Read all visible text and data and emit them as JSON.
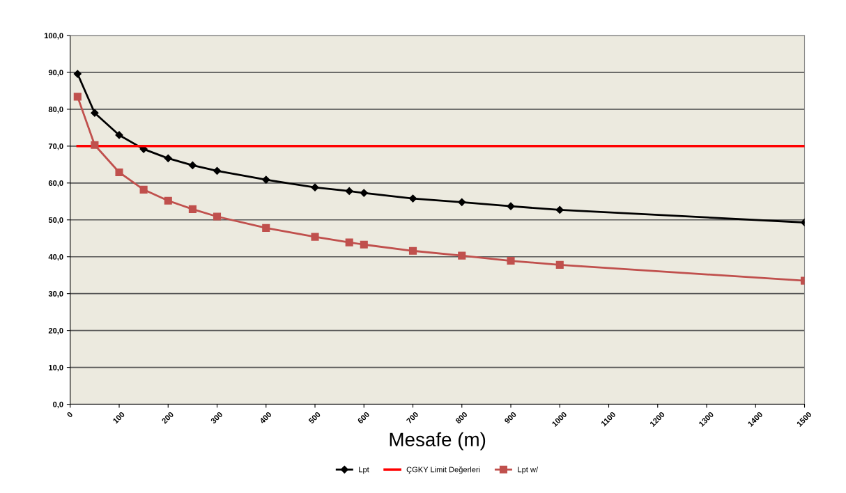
{
  "chart_data": {
    "type": "line",
    "xlabel": "Mesafe (m)",
    "x": [
      15,
      50,
      100,
      150,
      200,
      250,
      300,
      400,
      500,
      570,
      600,
      700,
      800,
      900,
      1000,
      1500
    ],
    "series": [
      {
        "name": "Lpt",
        "color": "#000000",
        "marker": "diamond",
        "values": [
          89.6,
          79.0,
          73.0,
          69.2,
          66.7,
          64.8,
          63.3,
          60.9,
          58.8,
          57.8,
          57.3,
          55.8,
          54.8,
          53.7,
          52.7,
          49.3
        ]
      },
      {
        "name": "ÇGKY Limit Değerleri",
        "color": "#ff0000",
        "marker": "none",
        "values": [
          70,
          70,
          70,
          70,
          70,
          70,
          70,
          70,
          70,
          70,
          70,
          70,
          70,
          70,
          70,
          70
        ]
      },
      {
        "name": "Lpt w/",
        "color": "#c0504d",
        "marker": "square",
        "values": [
          83.4,
          70.3,
          62.9,
          58.2,
          55.2,
          52.9,
          50.9,
          47.8,
          45.4,
          43.9,
          43.3,
          41.6,
          40.3,
          38.9,
          37.8,
          33.5
        ]
      }
    ],
    "xlim": [
      0,
      1500
    ],
    "xticks": [
      0,
      100,
      200,
      300,
      400,
      500,
      600,
      700,
      800,
      900,
      1000,
      1100,
      1200,
      1300,
      1400,
      1500
    ],
    "ylim": [
      0,
      100
    ],
    "yticks": [
      {
        "value": 0,
        "label": "0,0"
      },
      {
        "value": 10,
        "label": "10,0"
      },
      {
        "value": 20,
        "label": "20,0"
      },
      {
        "value": 30,
        "label": "30,0"
      },
      {
        "value": 40,
        "label": "40,0"
      },
      {
        "value": 50,
        "label": "50,0"
      },
      {
        "value": 60,
        "label": "60,0"
      },
      {
        "value": 70,
        "label": "70,0"
      },
      {
        "value": 80,
        "label": "80,0"
      },
      {
        "value": 90,
        "label": "90,0"
      },
      {
        "value": 100,
        "label": "100,0"
      }
    ],
    "grid": "y",
    "legend": "bottom"
  }
}
